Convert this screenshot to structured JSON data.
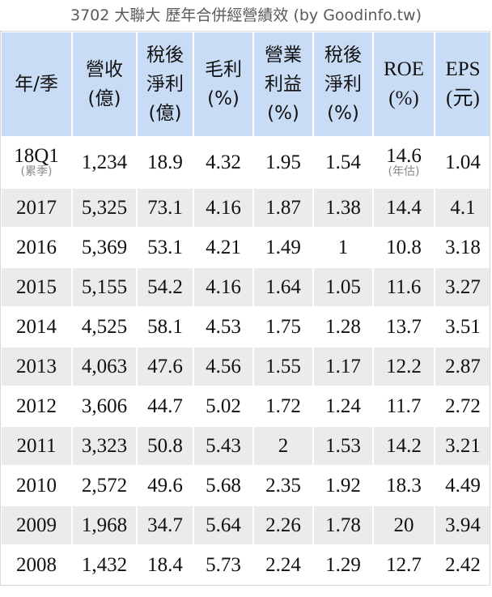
{
  "title": "3702 大聯大 歷年合併經營績效 (by Goodinfo.tw)",
  "columns": [
    {
      "line1": "年/季",
      "line2": "",
      "line3": ""
    },
    {
      "line1": "營收",
      "line2": "(億)",
      "line3": ""
    },
    {
      "line1": "稅後",
      "line2": "淨利",
      "line3": "(億)"
    },
    {
      "line1": "毛利",
      "line2": "(%)",
      "line3": ""
    },
    {
      "line1": "營業",
      "line2": "利益",
      "line3": "(%)"
    },
    {
      "line1": "稅後",
      "line2": "淨利",
      "line3": "(%)"
    },
    {
      "line1": "ROE",
      "line2": "(%)",
      "line3": ""
    },
    {
      "line1": "EPS",
      "line2": "(元)",
      "line3": ""
    }
  ],
  "first_row": {
    "period": "18Q1",
    "period_note": "(累季)",
    "revenue": "1,234",
    "net_income": "18.9",
    "gross_margin": "4.32",
    "operating_margin": "1.95",
    "net_margin": "1.54",
    "roe": "14.6",
    "roe_note": "(年估)",
    "eps": "1.04"
  },
  "rows": [
    {
      "period": "2017",
      "revenue": "5,325",
      "net_income": "73.1",
      "gross_margin": "4.16",
      "operating_margin": "1.87",
      "net_margin": "1.38",
      "roe": "14.4",
      "eps": "4.1"
    },
    {
      "period": "2016",
      "revenue": "5,369",
      "net_income": "53.1",
      "gross_margin": "4.21",
      "operating_margin": "1.49",
      "net_margin": "1",
      "roe": "10.8",
      "eps": "3.18"
    },
    {
      "period": "2015",
      "revenue": "5,155",
      "net_income": "54.2",
      "gross_margin": "4.16",
      "operating_margin": "1.64",
      "net_margin": "1.05",
      "roe": "11.6",
      "eps": "3.27"
    },
    {
      "period": "2014",
      "revenue": "4,525",
      "net_income": "58.1",
      "gross_margin": "4.53",
      "operating_margin": "1.75",
      "net_margin": "1.28",
      "roe": "13.7",
      "eps": "3.51"
    },
    {
      "period": "2013",
      "revenue": "4,063",
      "net_income": "47.6",
      "gross_margin": "4.56",
      "operating_margin": "1.55",
      "net_margin": "1.17",
      "roe": "12.2",
      "eps": "2.87"
    },
    {
      "period": "2012",
      "revenue": "3,606",
      "net_income": "44.7",
      "gross_margin": "5.02",
      "operating_margin": "1.72",
      "net_margin": "1.24",
      "roe": "11.7",
      "eps": "2.72"
    },
    {
      "period": "2011",
      "revenue": "3,323",
      "net_income": "50.8",
      "gross_margin": "5.43",
      "operating_margin": "2",
      "net_margin": "1.53",
      "roe": "14.2",
      "eps": "3.21"
    },
    {
      "period": "2010",
      "revenue": "2,572",
      "net_income": "49.6",
      "gross_margin": "5.68",
      "operating_margin": "2.35",
      "net_margin": "1.92",
      "roe": "18.3",
      "eps": "4.49"
    },
    {
      "period": "2009",
      "revenue": "1,968",
      "net_income": "34.7",
      "gross_margin": "5.64",
      "operating_margin": "2.26",
      "net_margin": "1.78",
      "roe": "20",
      "eps": "3.94"
    },
    {
      "period": "2008",
      "revenue": "1,432",
      "net_income": "18.4",
      "gross_margin": "5.73",
      "operating_margin": "2.24",
      "net_margin": "1.29",
      "roe": "12.7",
      "eps": "2.42"
    }
  ],
  "colors": {
    "header_bg": "#c9dcf5",
    "row_alt_bg": "#ebebeb",
    "title_text": "#5a5a5a"
  }
}
